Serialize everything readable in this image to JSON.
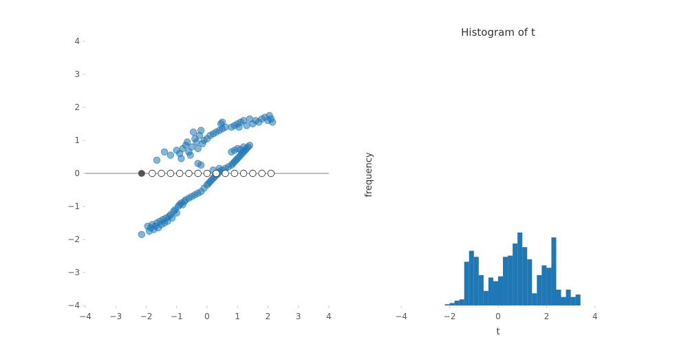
{
  "chart_data": [
    {
      "type": "scatter",
      "title": "",
      "xlabel": "",
      "ylabel": "",
      "xlim": [
        -4,
        4
      ],
      "ylim": [
        -4,
        4
      ],
      "xticks": [
        "−4",
        "−3",
        "−2",
        "−1",
        "0",
        "1",
        "2",
        "3",
        "4"
      ],
      "yticks": [
        "−4",
        "−3",
        "−2",
        "−1",
        "0",
        "1",
        "2",
        "3",
        "4"
      ],
      "grid": false,
      "reference_line": {
        "y": 0,
        "color": "#999999"
      },
      "series": [
        {
          "color": "#1f77b4",
          "points": [
            [
              -2.15,
              -1.85
            ],
            [
              -1.95,
              -1.6
            ],
            [
              -1.9,
              -1.75
            ],
            [
              -1.85,
              -1.65
            ],
            [
              -1.8,
              -1.55
            ],
            [
              -1.75,
              -1.7
            ],
            [
              -1.7,
              -1.6
            ],
            [
              -1.65,
              -1.5
            ],
            [
              -1.6,
              -1.65
            ],
            [
              -1.55,
              -1.45
            ],
            [
              -1.5,
              -1.55
            ],
            [
              -1.45,
              -1.4
            ],
            [
              -1.4,
              -1.5
            ],
            [
              -1.35,
              -1.35
            ],
            [
              -1.3,
              -1.45
            ],
            [
              -1.25,
              -1.3
            ],
            [
              -1.2,
              -1.25
            ],
            [
              -1.15,
              -1.35
            ],
            [
              -1.1,
              -1.15
            ],
            [
              -1.05,
              -1.1
            ],
            [
              -1.0,
              -1.2
            ],
            [
              -0.95,
              -1.0
            ],
            [
              -0.9,
              -0.95
            ],
            [
              -0.85,
              -0.9
            ],
            [
              -0.8,
              -0.95
            ],
            [
              -0.75,
              -0.85
            ],
            [
              -0.7,
              -0.8
            ],
            [
              -0.6,
              -0.75
            ],
            [
              -0.5,
              -0.7
            ],
            [
              -0.4,
              -0.65
            ],
            [
              -0.3,
              -0.6
            ],
            [
              -0.2,
              -0.55
            ],
            [
              -0.1,
              -0.45
            ],
            [
              0.0,
              -0.35
            ],
            [
              0.05,
              -0.3
            ],
            [
              0.1,
              -0.25
            ],
            [
              0.15,
              -0.2
            ],
            [
              0.2,
              -0.15
            ],
            [
              0.25,
              -0.1
            ],
            [
              0.3,
              -0.05
            ],
            [
              0.35,
              -0.02
            ],
            [
              0.4,
              0.05
            ],
            [
              0.5,
              0.1
            ],
            [
              0.6,
              0.15
            ],
            [
              0.7,
              0.2
            ],
            [
              0.8,
              0.25
            ],
            [
              0.85,
              0.3
            ],
            [
              0.9,
              0.35
            ],
            [
              0.95,
              0.4
            ],
            [
              1.0,
              0.45
            ],
            [
              1.05,
              0.5
            ],
            [
              1.1,
              0.55
            ],
            [
              1.15,
              0.6
            ],
            [
              1.2,
              0.65
            ],
            [
              1.25,
              0.7
            ],
            [
              1.3,
              0.75
            ],
            [
              1.35,
              0.8
            ],
            [
              1.4,
              0.85
            ],
            [
              0.8,
              0.65
            ],
            [
              0.9,
              0.7
            ],
            [
              1.0,
              0.75
            ],
            [
              1.1,
              0.72
            ],
            [
              1.2,
              0.8
            ],
            [
              -1.65,
              0.4
            ],
            [
              -1.4,
              0.65
            ],
            [
              -1.2,
              0.55
            ],
            [
              -1.0,
              0.7
            ],
            [
              -0.9,
              0.6
            ],
            [
              -0.85,
              0.45
            ],
            [
              -0.8,
              0.75
            ],
            [
              -0.7,
              0.85
            ],
            [
              -0.65,
              0.95
            ],
            [
              -0.6,
              0.65
            ],
            [
              -0.55,
              0.55
            ],
            [
              -0.5,
              0.8
            ],
            [
              -0.45,
              1.25
            ],
            [
              -0.4,
              1.05
            ],
            [
              -0.35,
              0.95
            ],
            [
              -0.3,
              0.75
            ],
            [
              -0.25,
              1.15
            ],
            [
              -0.2,
              1.3
            ],
            [
              -0.15,
              0.9
            ],
            [
              -0.1,
              1.0
            ],
            [
              0.0,
              1.05
            ],
            [
              0.1,
              1.15
            ],
            [
              0.2,
              1.2
            ],
            [
              0.3,
              1.25
            ],
            [
              0.4,
              1.3
            ],
            [
              0.5,
              1.35
            ],
            [
              0.45,
              1.5
            ],
            [
              0.6,
              1.4
            ],
            [
              0.5,
              1.55
            ],
            [
              0.8,
              1.4
            ],
            [
              0.9,
              1.45
            ],
            [
              1.0,
              1.5
            ],
            [
              1.05,
              1.4
            ],
            [
              1.1,
              1.55
            ],
            [
              1.2,
              1.6
            ],
            [
              1.3,
              1.45
            ],
            [
              1.4,
              1.65
            ],
            [
              1.5,
              1.5
            ],
            [
              1.6,
              1.6
            ],
            [
              1.7,
              1.55
            ],
            [
              1.8,
              1.65
            ],
            [
              1.9,
              1.7
            ],
            [
              2.0,
              1.6
            ],
            [
              2.05,
              1.75
            ],
            [
              2.1,
              1.65
            ],
            [
              2.15,
              1.55
            ],
            [
              -0.3,
              0.3
            ],
            [
              -0.2,
              0.25
            ],
            [
              0.2,
              0.1
            ],
            [
              0.4,
              0.15
            ]
          ]
        },
        {
          "color": "#ffffff",
          "points": [
            [
              -1.8,
              0
            ],
            [
              -1.5,
              0
            ],
            [
              -1.2,
              0
            ],
            [
              -0.9,
              0
            ],
            [
              -0.6,
              0
            ],
            [
              -0.3,
              0
            ],
            [
              0.0,
              0
            ],
            [
              0.3,
              0
            ],
            [
              0.6,
              0
            ],
            [
              0.9,
              0
            ],
            [
              1.2,
              0
            ],
            [
              1.5,
              0
            ],
            [
              1.8,
              0
            ],
            [
              2.1,
              0
            ]
          ]
        },
        {
          "color": "#444444",
          "points": [
            [
              -2.15,
              0
            ]
          ]
        }
      ]
    },
    {
      "type": "bar",
      "title": "Histogram of t",
      "xlabel": "t",
      "ylabel": "frequency",
      "xlim": [
        -5,
        5
      ],
      "xticks": [
        "−4",
        "−2",
        "0",
        "2",
        "4"
      ],
      "grid": false,
      "color": "#1f77b4",
      "bin_width": 0.2,
      "bin_start": -2.2,
      "values": [
        1,
        2,
        4,
        5,
        36,
        45,
        40,
        25,
        12,
        23,
        20,
        24,
        40,
        41,
        51,
        60,
        48,
        38,
        10,
        25,
        33,
        31,
        56,
        13,
        7,
        13,
        7,
        9
      ]
    }
  ]
}
